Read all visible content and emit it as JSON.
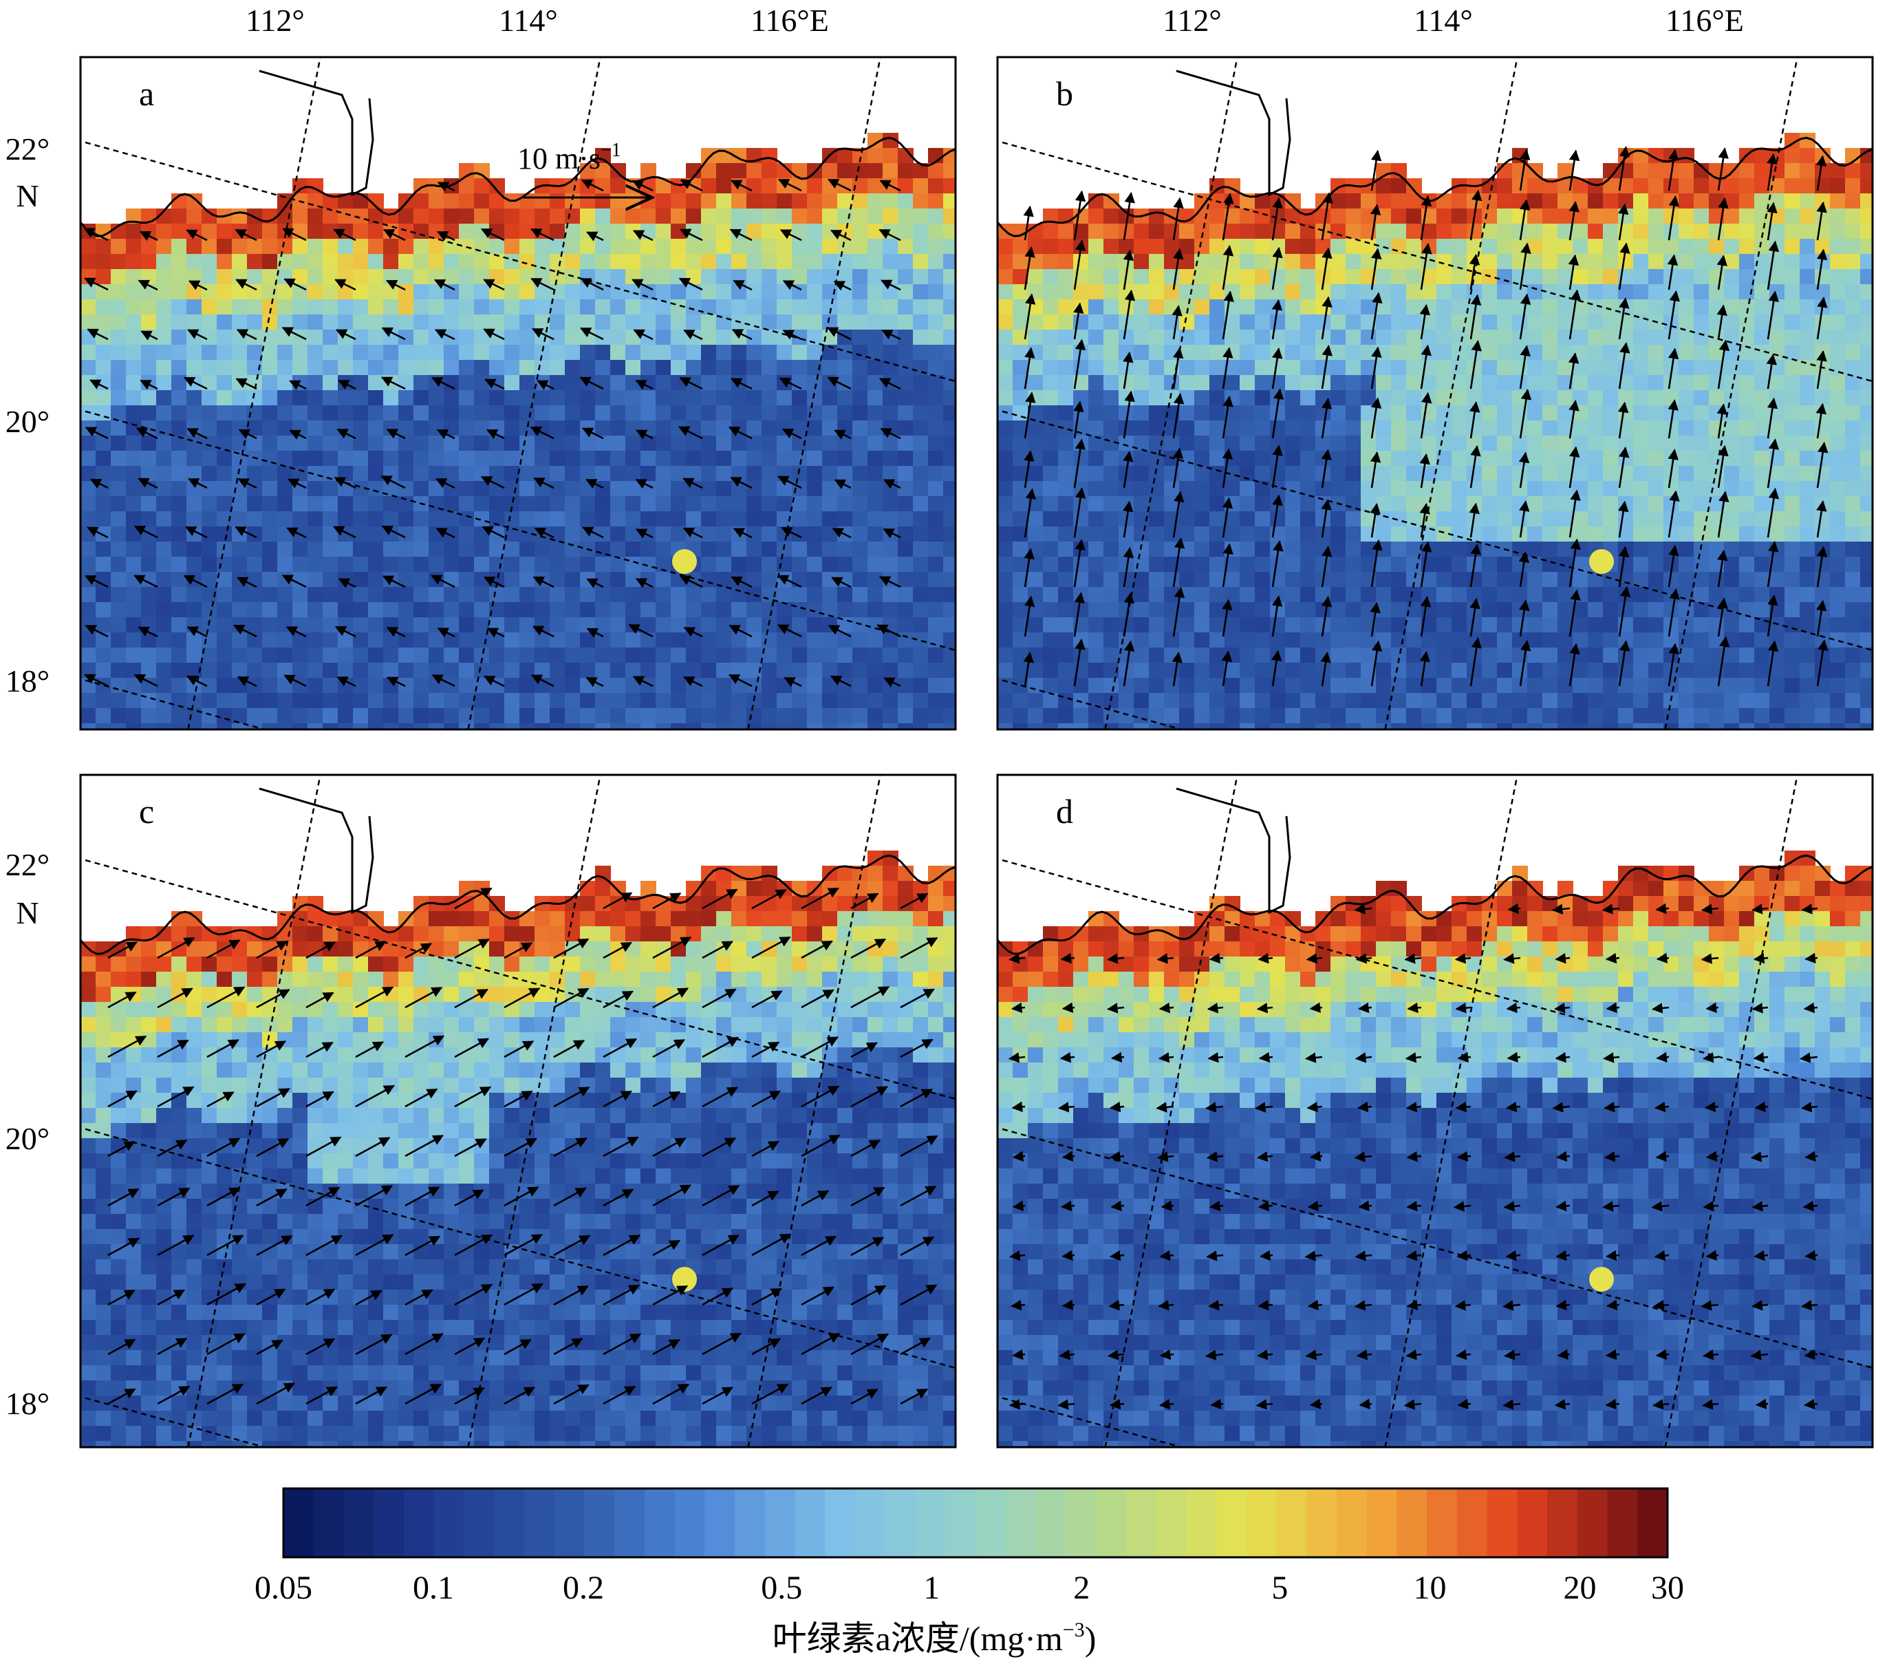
{
  "figure": {
    "top_lon_labels": [
      "112°",
      "114°",
      "116°E"
    ],
    "left_lat_labels": [
      "22°",
      "N",
      "20°",
      "18°"
    ],
    "scale_arrow_label": "10 m·s",
    "scale_arrow_sup": "−1"
  },
  "panels": [
    {
      "letter": "a",
      "wind_dx": -0.85,
      "wind_dy": -0.42,
      "wind_speed": 0.7,
      "bands": [
        0.95,
        0.55,
        0.3
      ]
    },
    {
      "letter": "b",
      "wind_dx": 0.15,
      "wind_dy": -1.0,
      "wind_speed": 1.25,
      "bands": [
        0.95,
        0.6,
        0.45
      ]
    },
    {
      "letter": "c",
      "wind_dx": 0.88,
      "wind_dy": -0.48,
      "wind_speed": 1.1,
      "bands": [
        0.95,
        0.6,
        0.35
      ]
    },
    {
      "letter": "d",
      "wind_dx": -0.95,
      "wind_dy": 0.1,
      "wind_speed": 0.45,
      "bands": [
        0.9,
        0.6,
        0.35
      ]
    }
  ],
  "colorbar": {
    "tick_labels": [
      "0.05",
      "0.1",
      "0.2",
      "0.5",
      "1",
      "2",
      "5",
      "10",
      "20",
      "30"
    ],
    "tick_values": [
      0.05,
      0.1,
      0.2,
      0.5,
      1,
      2,
      5,
      10,
      20,
      30
    ],
    "title_prefix": "叶绿素a浓度/(mg·m",
    "title_sup": "−3",
    "title_suffix": ")",
    "colors": [
      "#0b1a5e",
      "#1f3a8f",
      "#2f5aa8",
      "#4f88d8",
      "#7fc0e8",
      "#95d2c8",
      "#b6d98a",
      "#e6e24f",
      "#f2a23a",
      "#e2421f",
      "#6e0f12"
    ]
  },
  "legend_colors": {
    "land": "#ffffff",
    "coast": "#000000",
    "grid": "#000000"
  }
}
